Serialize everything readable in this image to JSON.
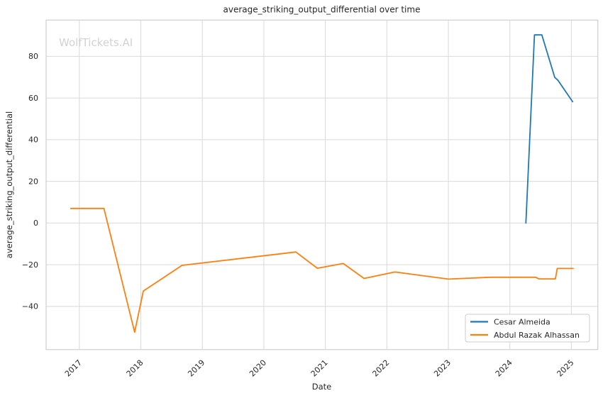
{
  "chart_data": {
    "type": "line",
    "title": "average_striking_output_differential over time",
    "xlabel": "Date",
    "ylabel": "average_striking_output_differential",
    "xlim": [
      2016.46,
      2025.43
    ],
    "ylim": [
      -60.7,
      97.4
    ],
    "x_ticks": [
      2017,
      2018,
      2019,
      2020,
      2021,
      2022,
      2023,
      2024,
      2025
    ],
    "y_ticks": [
      -40,
      -20,
      0,
      20,
      40,
      60,
      80
    ],
    "grid": true,
    "legend_position": "lower right",
    "series": [
      {
        "name": "Cesar Almeida",
        "color": "#1f77b4",
        "points": [
          [
            2024.26,
            0.0
          ],
          [
            2024.4,
            90.3
          ],
          [
            2024.52,
            90.3
          ],
          [
            2024.73,
            69.9
          ],
          [
            2024.78,
            68.6
          ],
          [
            2025.02,
            58.2
          ]
        ]
      },
      {
        "name": "Abdul Razak Alhassan",
        "color": "#ff7f0e",
        "points": [
          [
            2016.86,
            7.0
          ],
          [
            2017.4,
            7.0
          ],
          [
            2017.9,
            -52.4
          ],
          [
            2018.04,
            -32.6
          ],
          [
            2018.67,
            -20.3
          ],
          [
            2020.52,
            -13.9
          ],
          [
            2020.87,
            -21.7
          ],
          [
            2021.29,
            -19.4
          ],
          [
            2021.63,
            -26.6
          ],
          [
            2022.13,
            -23.5
          ],
          [
            2023.0,
            -26.9
          ],
          [
            2023.68,
            -26.0
          ],
          [
            2024.42,
            -26.0
          ],
          [
            2024.47,
            -26.8
          ],
          [
            2024.74,
            -26.8
          ],
          [
            2024.77,
            -21.8
          ],
          [
            2025.03,
            -21.8
          ]
        ]
      }
    ]
  },
  "watermark": {
    "text": "WolfTickets.AI",
    "color": "#d2d2d2"
  }
}
